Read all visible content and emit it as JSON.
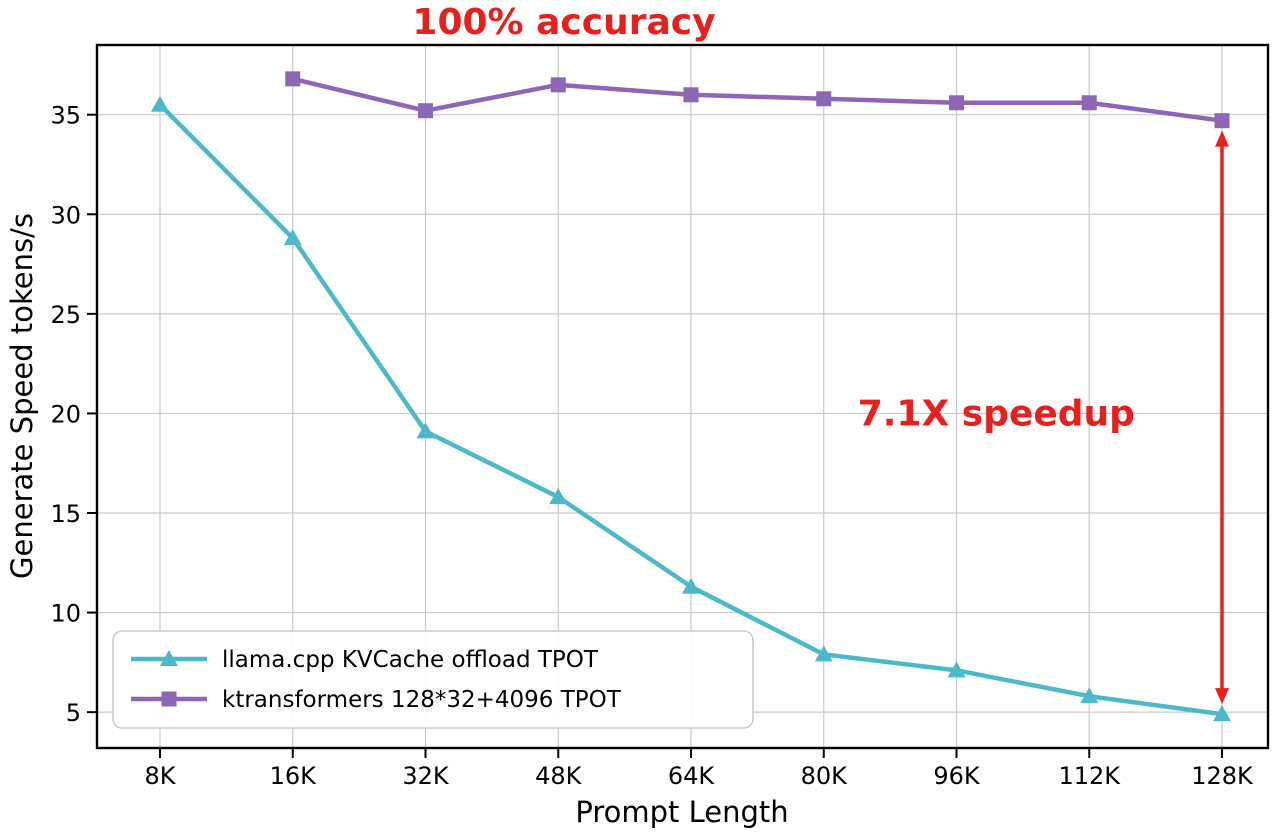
{
  "chart_data": {
    "type": "line",
    "title": "100% accuracy",
    "xlabel": "Prompt Length",
    "ylabel": "Generate Speed tokens/s",
    "categories": [
      "8K",
      "16K",
      "32K",
      "48K",
      "64K",
      "80K",
      "96K",
      "112K",
      "128K"
    ],
    "series": [
      {
        "name": "llama.cpp KVCache offload TPOT",
        "color": "#4cb9c9",
        "marker": "triangle",
        "values": [
          35.5,
          28.8,
          19.1,
          15.8,
          11.3,
          7.9,
          7.1,
          5.8,
          4.9
        ]
      },
      {
        "name": "ktransformers 128*32+4096 TPOT",
        "color": "#8d66b5",
        "marker": "square",
        "values": [
          null,
          36.8,
          35.2,
          36.5,
          36.0,
          35.8,
          35.6,
          35.6,
          34.7
        ]
      }
    ],
    "yticks": [
      5,
      10,
      15,
      20,
      25,
      30,
      35
    ],
    "ylim": [
      3.2,
      38.5
    ],
    "grid": true,
    "legend_position": "lower left",
    "annotations": {
      "accuracy_label": {
        "text": "100% accuracy",
        "color": "#e8201d"
      },
      "speedup_label": {
        "text": "7.1X speedup",
        "color": "#e8201d",
        "x_index": 6.3,
        "y": 19.4
      },
      "speedup_arrow": {
        "x_index": 8,
        "y_top": 34.2,
        "y_bottom": 5.4,
        "color": "#e8201d"
      }
    }
  }
}
